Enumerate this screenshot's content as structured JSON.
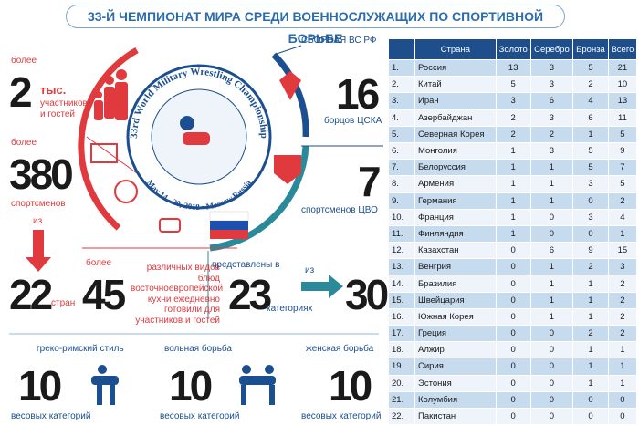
{
  "header": {
    "title": "33-Й ЧЕМПИОНАТ МИРА СРЕДИ ВОЕННОСЛУЖАЩИХ ПО СПОРТИВНОЙ БОРЬБЕ"
  },
  "stats": {
    "participants": {
      "prefix": "более",
      "number": 2,
      "unit": "тыс.",
      "label": "участников и гостей"
    },
    "athletes": {
      "prefix": "более",
      "number": 380,
      "label": "спортсменов"
    },
    "countries": {
      "prefix": "из",
      "number": 22,
      "label": "стран"
    },
    "dishes": {
      "prefix": "более",
      "number": 45,
      "label": "различных видов блюд восточноевропейской кухни ежедневно готовили для участников и гостей"
    },
    "categories": {
      "prefix": "представлены в",
      "number": 23,
      "label": "категориях",
      "of_prefix": "из",
      "of_number": 30
    },
    "team": {
      "title": "СБОРНАЯ ВС РФ",
      "cska_number": 16,
      "cska_label": "борцов ЦСКА",
      "cvo_number": 7,
      "cvo_label": "спортсменов ЦВО"
    }
  },
  "logo": {
    "name": "33rd World Military Wrestling Championship",
    "dates": "May 14 - 20, 2018 • Moscow,Russia"
  },
  "styles": [
    {
      "name": "греко-римский стиль",
      "number": 10,
      "label": "весовых категорий"
    },
    {
      "name": "вольная борьба",
      "number": 10,
      "label": "весовых категорий"
    },
    {
      "name": "женская борьба",
      "number": 10,
      "label": "весовых категорий"
    }
  ],
  "table": {
    "columns": [
      "Страна",
      "Золото",
      "Серебро",
      "Бронза",
      "Всего"
    ],
    "rows": [
      [
        "1.",
        "Россия",
        13,
        3,
        5,
        21
      ],
      [
        "2.",
        "Китай",
        5,
        3,
        2,
        10
      ],
      [
        "3.",
        "Иран",
        3,
        6,
        4,
        13
      ],
      [
        "4.",
        "Азербайджан",
        2,
        3,
        6,
        11
      ],
      [
        "5.",
        "Северная Корея",
        2,
        2,
        1,
        5
      ],
      [
        "6.",
        "Монголия",
        1,
        3,
        5,
        9
      ],
      [
        "7.",
        "Белоруссия",
        1,
        1,
        5,
        7
      ],
      [
        "8.",
        "Армения",
        1,
        1,
        3,
        5
      ],
      [
        "9.",
        "Германия",
        1,
        1,
        0,
        2
      ],
      [
        "10.",
        "Франция",
        1,
        0,
        3,
        4
      ],
      [
        "11.",
        "Финляндия",
        1,
        0,
        0,
        1
      ],
      [
        "12.",
        "Казахстан",
        0,
        6,
        9,
        15
      ],
      [
        "13.",
        "Венгрия",
        0,
        1,
        2,
        3
      ],
      [
        "14.",
        "Бразилия",
        0,
        1,
        1,
        2
      ],
      [
        "15.",
        "Швейцария",
        0,
        1,
        1,
        2
      ],
      [
        "16.",
        "Южная Корея",
        0,
        1,
        1,
        2
      ],
      [
        "17.",
        "Греция",
        0,
        0,
        2,
        2
      ],
      [
        "18.",
        "Алжир",
        0,
        0,
        1,
        1
      ],
      [
        "19.",
        "Сирия",
        0,
        0,
        1,
        1
      ],
      [
        "20.",
        "Эстония",
        0,
        0,
        1,
        1
      ],
      [
        "21.",
        "Колумбия",
        0,
        0,
        0,
        0
      ],
      [
        "22.",
        "Пакистан",
        0,
        0,
        0,
        0
      ]
    ]
  }
}
